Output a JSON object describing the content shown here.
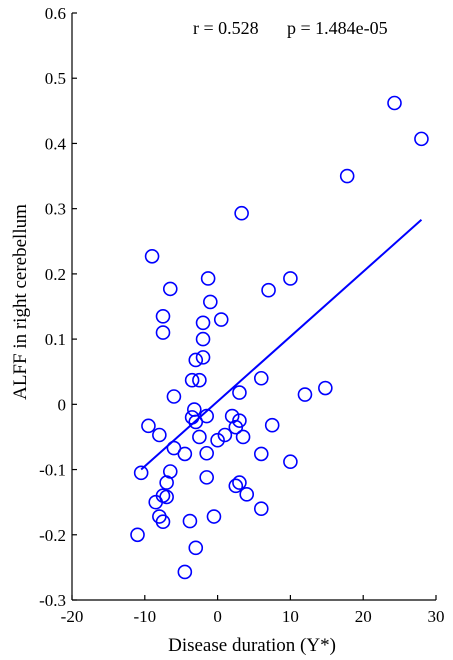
{
  "chart_data": {
    "type": "scatter",
    "title": "",
    "xlabel": "Disease duration (Y*)",
    "ylabel": "ALFF in right cerebellum",
    "xlim": [
      -20,
      30
    ],
    "ylim": [
      -0.3,
      0.6
    ],
    "xticks": [
      "-20",
      "-10",
      "0",
      "10",
      "20",
      "30"
    ],
    "yticks": [
      "-0.3",
      "-0.2",
      "-0.1",
      "0",
      "0.1",
      "0.2",
      "0.3",
      "0.4",
      "0.5",
      "0.6"
    ],
    "grid": false,
    "legend": "none",
    "annotation": {
      "r_text": "r = 0.528",
      "p_text": "p = 1.484e-05"
    },
    "marker": "open-circle",
    "color": "#0000ff",
    "fit_line": {
      "x": [
        -10.5,
        28
      ],
      "y": [
        -0.1,
        0.283
      ]
    },
    "points": [
      {
        "x": -9,
        "y": 0.227
      },
      {
        "x": -6.5,
        "y": 0.177
      },
      {
        "x": -7.5,
        "y": 0.135
      },
      {
        "x": -7.5,
        "y": 0.11
      },
      {
        "x": -6,
        "y": 0.012
      },
      {
        "x": -9.5,
        "y": -0.033
      },
      {
        "x": -8,
        "y": -0.047
      },
      {
        "x": -6,
        "y": -0.067
      },
      {
        "x": -10.5,
        "y": -0.105
      },
      {
        "x": -6.5,
        "y": -0.103
      },
      {
        "x": -7,
        "y": -0.12
      },
      {
        "x": -7.5,
        "y": -0.14
      },
      {
        "x": -7,
        "y": -0.142
      },
      {
        "x": -8.5,
        "y": -0.15
      },
      {
        "x": -8,
        "y": -0.172
      },
      {
        "x": -7.5,
        "y": -0.18
      },
      {
        "x": -11,
        "y": -0.2
      },
      {
        "x": -4.5,
        "y": -0.257
      },
      {
        "x": -3,
        "y": -0.22
      },
      {
        "x": -3.8,
        "y": -0.179
      },
      {
        "x": -0.5,
        "y": -0.172
      },
      {
        "x": -1.5,
        "y": -0.112
      },
      {
        "x": -4.5,
        "y": -0.076
      },
      {
        "x": -2.5,
        "y": -0.05
      },
      {
        "x": -3.5,
        "y": -0.02
      },
      {
        "x": -3.2,
        "y": -0.008
      },
      {
        "x": -3,
        "y": -0.027
      },
      {
        "x": -1.5,
        "y": -0.018
      },
      {
        "x": -1.5,
        "y": -0.075
      },
      {
        "x": 0,
        "y": -0.055
      },
      {
        "x": 1,
        "y": -0.047
      },
      {
        "x": 2,
        "y": -0.018
      },
      {
        "x": 2.5,
        "y": -0.035
      },
      {
        "x": 3,
        "y": -0.025
      },
      {
        "x": 3.5,
        "y": -0.05
      },
      {
        "x": 3,
        "y": -0.12
      },
      {
        "x": 2.5,
        "y": -0.125
      },
      {
        "x": 4,
        "y": -0.138
      },
      {
        "x": 6,
        "y": -0.16
      },
      {
        "x": 6,
        "y": -0.076
      },
      {
        "x": 3,
        "y": 0.018
      },
      {
        "x": 6,
        "y": 0.04
      },
      {
        "x": 7.5,
        "y": -0.032
      },
      {
        "x": 10,
        "y": -0.088
      },
      {
        "x": 12,
        "y": 0.015
      },
      {
        "x": 14.8,
        "y": 0.025
      },
      {
        "x": -3.5,
        "y": 0.037
      },
      {
        "x": -2.5,
        "y": 0.037
      },
      {
        "x": -3,
        "y": 0.068
      },
      {
        "x": -2,
        "y": 0.072
      },
      {
        "x": -2,
        "y": 0.1
      },
      {
        "x": -2,
        "y": 0.125
      },
      {
        "x": 0.5,
        "y": 0.13
      },
      {
        "x": -1,
        "y": 0.157
      },
      {
        "x": -1.3,
        "y": 0.193
      },
      {
        "x": 3.3,
        "y": 0.293
      },
      {
        "x": 7,
        "y": 0.175
      },
      {
        "x": 10,
        "y": 0.193
      },
      {
        "x": 17.8,
        "y": 0.35
      },
      {
        "x": 24.3,
        "y": 0.462
      },
      {
        "x": 28,
        "y": 0.407
      }
    ]
  }
}
